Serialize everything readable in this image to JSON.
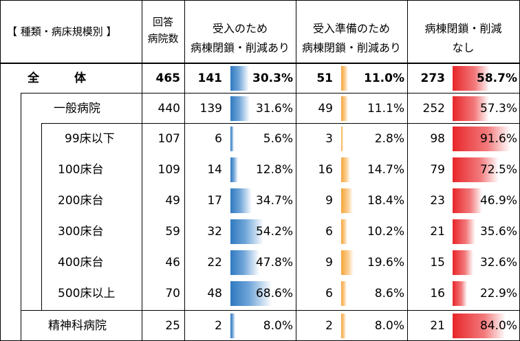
{
  "chart_data": {
    "type": "table",
    "headers": {
      "category": "【 種類・病床規模別 】",
      "respondents_l1": "回答",
      "respondents_l2": "病院数",
      "accept_l1": "受入のため",
      "accept_l2": "病棟閉鎖・削減あり",
      "prep_l1": "受入準備のため",
      "prep_l2": "病棟閉鎖・削減あり",
      "none_l1": "病棟閉鎖・削減",
      "none_l2": "なし"
    },
    "rows": [
      {
        "label": "全　　　体",
        "n": "465",
        "a_n": "141",
        "a_pct": "30.3%",
        "a_val": 30.3,
        "p_n": "51",
        "p_pct": "11.0%",
        "p_val": 11.0,
        "z_n": "273",
        "z_pct": "58.7%",
        "z_val": 58.7
      },
      {
        "label": "一般病院",
        "n": "440",
        "a_n": "139",
        "a_pct": "31.6%",
        "a_val": 31.6,
        "p_n": "49",
        "p_pct": "11.1%",
        "p_val": 11.1,
        "z_n": "252",
        "z_pct": "57.3%",
        "z_val": 57.3
      },
      {
        "label": "99床以下",
        "n": "107",
        "a_n": "6",
        "a_pct": "5.6%",
        "a_val": 5.6,
        "p_n": "3",
        "p_pct": "2.8%",
        "p_val": 2.8,
        "z_n": "98",
        "z_pct": "91.6%",
        "z_val": 91.6
      },
      {
        "label": "100床台",
        "n": "109",
        "a_n": "14",
        "a_pct": "12.8%",
        "a_val": 12.8,
        "p_n": "16",
        "p_pct": "14.7%",
        "p_val": 14.7,
        "z_n": "79",
        "z_pct": "72.5%",
        "z_val": 72.5
      },
      {
        "label": "200床台",
        "n": "49",
        "a_n": "17",
        "a_pct": "34.7%",
        "a_val": 34.7,
        "p_n": "9",
        "p_pct": "18.4%",
        "p_val": 18.4,
        "z_n": "23",
        "z_pct": "46.9%",
        "z_val": 46.9
      },
      {
        "label": "300床台",
        "n": "59",
        "a_n": "32",
        "a_pct": "54.2%",
        "a_val": 54.2,
        "p_n": "6",
        "p_pct": "10.2%",
        "p_val": 10.2,
        "z_n": "21",
        "z_pct": "35.6%",
        "z_val": 35.6
      },
      {
        "label": "400床台",
        "n": "46",
        "a_n": "22",
        "a_pct": "47.8%",
        "a_val": 47.8,
        "p_n": "9",
        "p_pct": "19.6%",
        "p_val": 19.6,
        "z_n": "15",
        "z_pct": "32.6%",
        "z_val": 32.6
      },
      {
        "label": "500床以上",
        "n": "70",
        "a_n": "48",
        "a_pct": "68.6%",
        "a_val": 68.6,
        "p_n": "6",
        "p_pct": "8.6%",
        "p_val": 8.6,
        "z_n": "16",
        "z_pct": "22.9%",
        "z_val": 22.9
      },
      {
        "label": "精神科病院",
        "n": "25",
        "a_n": "2",
        "a_pct": "8.0%",
        "a_val": 8.0,
        "p_n": "2",
        "p_pct": "8.0%",
        "p_val": 8.0,
        "z_n": "21",
        "z_pct": "84.0%",
        "z_val": 84.0
      }
    ],
    "bar_max": 100,
    "colors": {
      "accept": "#2f79c0",
      "prep": "#f6a43a",
      "none": "#e8262a"
    }
  }
}
